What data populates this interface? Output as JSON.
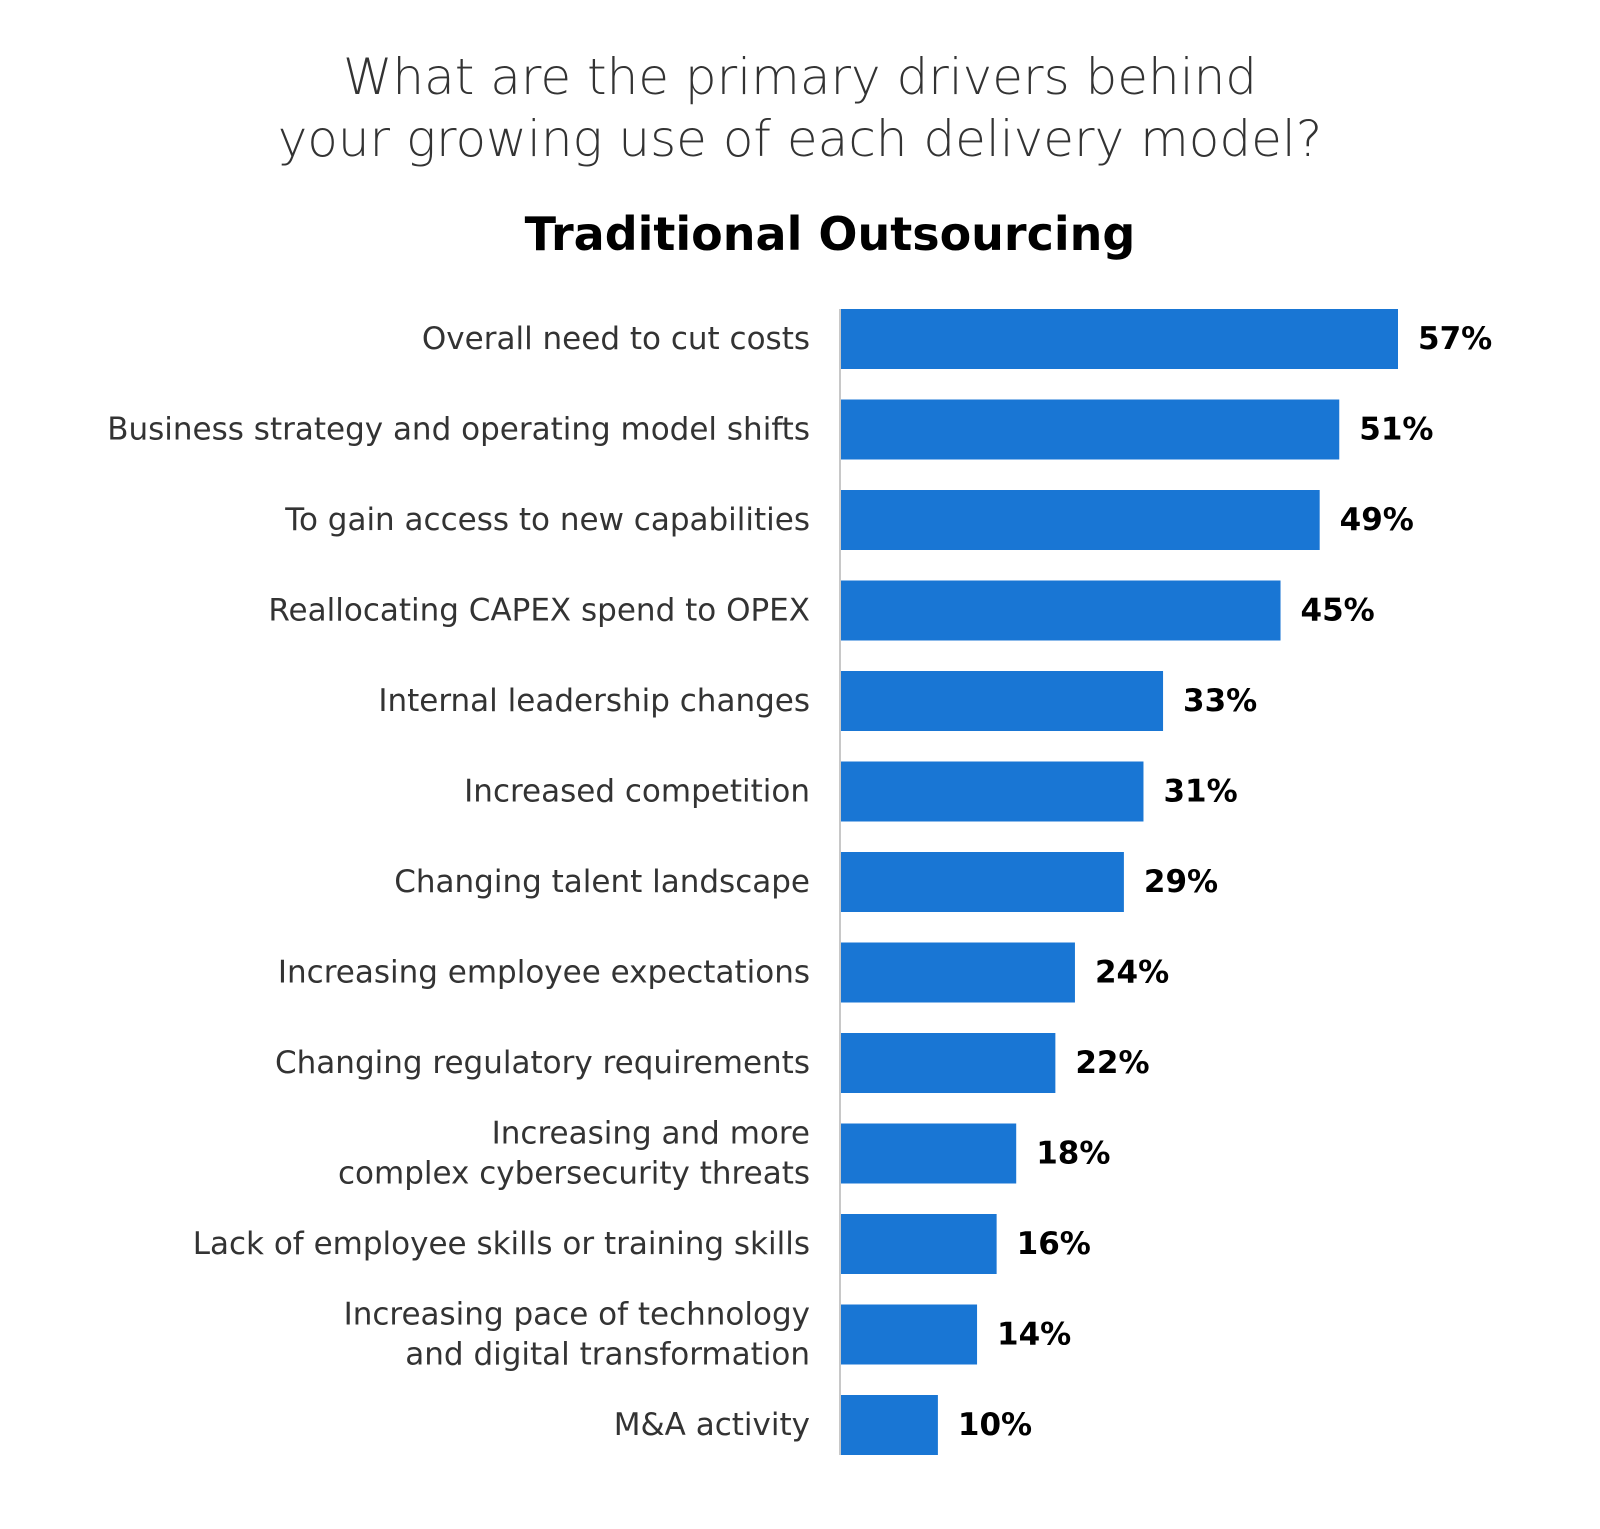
{
  "chart_data": {
    "type": "bar",
    "orientation": "horizontal",
    "title": "What are the primary drivers behind\nyour growing use of each delivery model?",
    "subtitle": "Traditional Outsourcing",
    "categories": [
      [
        "Overall need to cut costs"
      ],
      [
        "Business strategy and operating model shifts"
      ],
      [
        "To gain access to new capabilities"
      ],
      [
        "Reallocating CAPEX spend to OPEX"
      ],
      [
        "Internal leadership changes"
      ],
      [
        "Increased competition"
      ],
      [
        "Changing talent landscape"
      ],
      [
        "Increasing employee expectations"
      ],
      [
        "Changing regulatory requirements"
      ],
      [
        "Increasing and more",
        "complex cybersecurity threats"
      ],
      [
        "Lack of employee skills or training skills"
      ],
      [
        "Increasing pace of technology",
        "and digital transformation"
      ],
      [
        "M&A activity"
      ]
    ],
    "values": [
      57,
      51,
      49,
      45,
      33,
      31,
      29,
      24,
      22,
      18,
      16,
      14,
      10
    ],
    "value_labels": [
      "57%",
      "51%",
      "49%",
      "45%",
      "33%",
      "31%",
      "29%",
      "24%",
      "22%",
      "18%",
      "16%",
      "14%",
      "10%"
    ],
    "unit": "%",
    "xlim": [
      0,
      57
    ],
    "grid": false,
    "legend": "none",
    "colors": {
      "bar": "#1976d4",
      "axis": "#c8c8c8",
      "category_text": "#333333",
      "value_text": "#000000"
    }
  }
}
